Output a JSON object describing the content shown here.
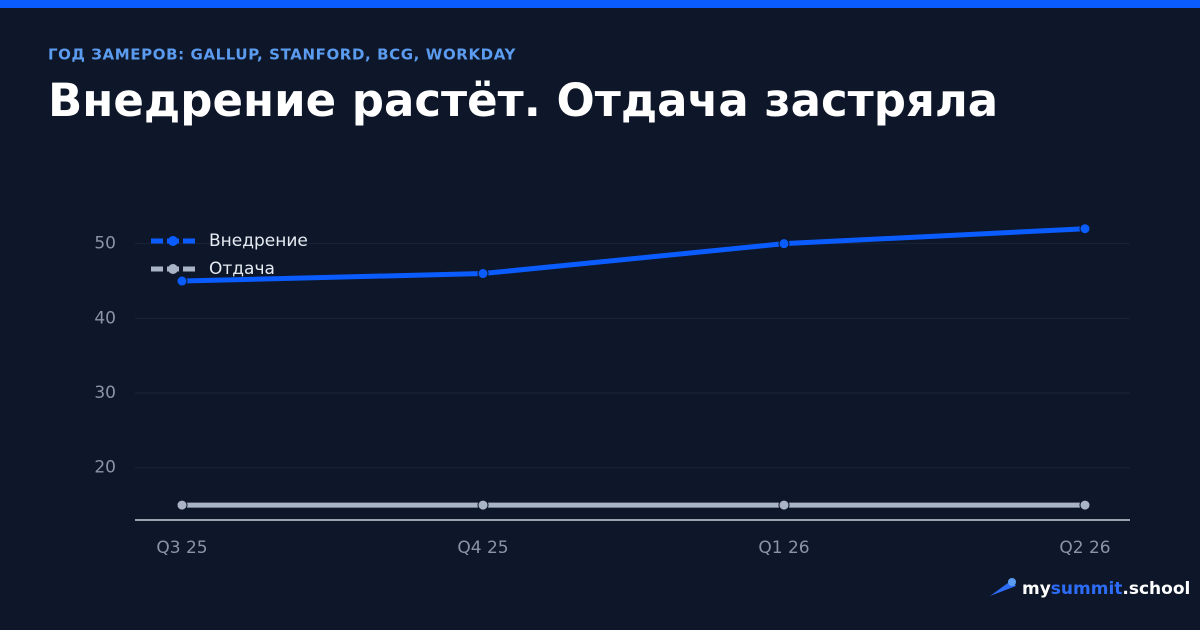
{
  "chart_data": {
    "type": "line",
    "subtitle": "ГОД ЗАМЕРОВ: GALLUP, STANFORD, BCG, WORKDAY",
    "title": "Внедрение растёт. Отдача застряла",
    "categories": [
      "Q3 25",
      "Q4 25",
      "Q1 26",
      "Q2 26"
    ],
    "series": [
      {
        "name": "Внедрение",
        "color": "#0a5cff",
        "values": [
          45,
          46,
          50,
          52
        ]
      },
      {
        "name": "Отдача",
        "color": "#a9b4c6",
        "values": [
          15,
          15,
          15,
          15
        ]
      }
    ],
    "ylim": [
      13,
      54
    ],
    "yticks": [
      20,
      30,
      40,
      50
    ],
    "grid": true,
    "legend": "top-left"
  },
  "brand": [
    "my",
    "summit",
    ".school"
  ]
}
